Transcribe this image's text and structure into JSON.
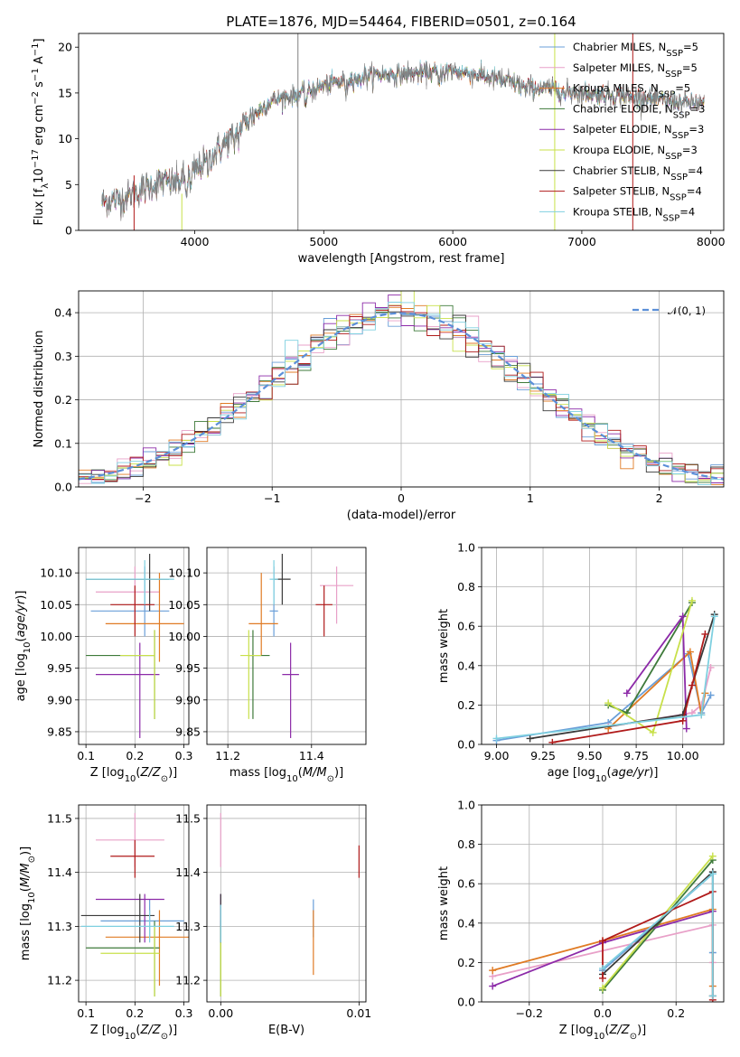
{
  "figure_title": "PLATE=1876, MJD=54464, FIBERID=0501, z=0.164",
  "colors": {
    "Chabrier MILES": "#6a9fd8",
    "Salpeter MILES": "#e8a0c8",
    "Kroupa MILES": "#e07b24",
    "Chabrier ELODIE": "#3e7a3a",
    "Salpeter ELODIE": "#8c2aa8",
    "Kroupa ELODIE": "#c8e04a",
    "Chabrier STELIB": "#3a3a3a",
    "Salpeter STELIB": "#b01a1a",
    "Kroupa STELIB": "#7fd0e0"
  },
  "chart_data": [
    {
      "id": "spectrum",
      "type": "line",
      "xlabel": "wavelength [Angstrom, rest frame]",
      "ylabel": "Flux [fλ10⁻¹⁷ erg cm⁻² s⁻¹ A⁻¹]",
      "xlim": [
        3100,
        8100
      ],
      "ylim": [
        0,
        21.5
      ],
      "xticks": [
        4000,
        5000,
        6000,
        7000,
        8000
      ],
      "yticks": [
        0,
        5,
        10,
        15,
        20
      ],
      "grid": false,
      "legend_position": "upper-right",
      "data_line": {
        "color": "#808080"
      },
      "spectrum_shape": {
        "x": [
          3250,
          3450,
          3600,
          3800,
          4000,
          4200,
          4400,
          4600,
          4800,
          5000,
          5200,
          5400,
          5600,
          5800,
          6000,
          6200,
          6400,
          6600,
          6800,
          7000,
          7200,
          7400,
          7600,
          7900
        ],
        "y": [
          3.0,
          3.5,
          4.5,
          5.8,
          6.5,
          9.0,
          12.0,
          14.2,
          14.8,
          15.8,
          16.5,
          17.0,
          17.0,
          17.2,
          17.4,
          17.0,
          16.3,
          15.6,
          15.4,
          15.0,
          14.8,
          14.6,
          14.2,
          13.8
        ]
      },
      "series": [
        {
          "name": "Chabrier MILES, N_SSP=5",
          "color": "#6a9fd8"
        },
        {
          "name": "Salpeter MILES, N_SSP=5",
          "color": "#e8a0c8"
        },
        {
          "name": "Kroupa MILES, N_SSP=5",
          "color": "#e07b24"
        },
        {
          "name": "Chabrier ELODIE, N_SSP=3",
          "color": "#3e7a3a"
        },
        {
          "name": "Salpeter ELODIE, N_SSP=3",
          "color": "#8c2aa8"
        },
        {
          "name": "Kroupa ELODIE, N_SSP=3",
          "color": "#c8e04a"
        },
        {
          "name": "Chabrier STELIB, N_SSP=4",
          "color": "#3a3a3a"
        },
        {
          "name": "Salpeter STELIB, N_SSP=4",
          "color": "#b01a1a"
        },
        {
          "name": "Kroupa STELIB, N_SSP=4",
          "color": "#7fd0e0"
        }
      ],
      "legend_html": [
        [
          "Chabrier MILES, N",
          "SSP",
          "=5"
        ],
        [
          "Salpeter MILES, N",
          "SSP",
          "=5"
        ],
        [
          "Kroupa MILES, N",
          "SSP",
          "=5"
        ],
        [
          "Chabrier ELODIE, N",
          "SSP",
          "=3"
        ],
        [
          "Salpeter ELODIE, N",
          "SSP",
          "=3"
        ],
        [
          "Kroupa ELODIE, N",
          "SSP",
          "=3"
        ],
        [
          "Chabrier STELIB, N",
          "SSP",
          "=4"
        ],
        [
          "Salpeter STELIB, N",
          "SSP",
          "=4"
        ],
        [
          "Kroupa STELIB, N",
          "SSP",
          "=4"
        ]
      ]
    },
    {
      "id": "residuals",
      "type": "line",
      "xlabel": "(data-model)/error",
      "ylabel": "Normed distribution",
      "xlim": [
        -2.5,
        2.5
      ],
      "ylim": [
        0,
        0.45
      ],
      "xticks": [
        -2,
        -1,
        0,
        1,
        2
      ],
      "yticks": [
        0.0,
        0.1,
        0.2,
        0.3,
        0.4
      ],
      "grid": true,
      "legend": "𝒩(0, 1)",
      "legend_position": "upper-right",
      "reference_curve": {
        "name": "N(0,1)",
        "color": "#5b8fd8",
        "style": "dashed"
      },
      "histogram_bin_width": 0.1,
      "histogram_shape": "stepped histograms of all nine models following the normal distribution"
    },
    {
      "id": "age_vs_Z",
      "type": "scatter",
      "xlabel": "Z [log10(Z/Z☉)]",
      "ylabel": "age  [log10(age/yr)]",
      "xlim": [
        0.085,
        0.31
      ],
      "ylim": [
        9.83,
        10.14
      ],
      "xticks": [
        0.1,
        0.2,
        0.3
      ],
      "yticks": [
        9.85,
        9.9,
        9.95,
        10.0,
        10.05,
        10.1
      ],
      "grid": true,
      "points": [
        {
          "model": "Chabrier MILES",
          "x": 0.22,
          "y": 10.04,
          "xerr": [
            0.11,
            0.27
          ],
          "yerr": [
            10.0,
            10.11
          ]
        },
        {
          "model": "Salpeter MILES",
          "x": 0.2,
          "y": 10.07,
          "xerr": [
            0.12,
            0.25
          ],
          "yerr": [
            10.02,
            10.11
          ]
        },
        {
          "model": "Kroupa MILES",
          "x": 0.25,
          "y": 10.02,
          "xerr": [
            0.14,
            0.3
          ],
          "yerr": [
            9.96,
            10.1
          ]
        },
        {
          "model": "Chabrier ELODIE",
          "x": 0.24,
          "y": 9.97,
          "xerr": [
            0.1,
            0.24
          ],
          "yerr": [
            9.87,
            10.01
          ]
        },
        {
          "model": "Salpeter ELODIE",
          "x": 0.21,
          "y": 9.94,
          "xerr": [
            0.12,
            0.25
          ],
          "yerr": [
            9.84,
            9.99
          ]
        },
        {
          "model": "Kroupa ELODIE",
          "x": 0.24,
          "y": 9.97,
          "xerr": [
            0.17,
            0.24
          ],
          "yerr": [
            9.87,
            10.01
          ]
        },
        {
          "model": "Chabrier STELIB",
          "x": 0.23,
          "y": 10.09,
          "xerr": [
            0.1,
            0.27
          ],
          "yerr": [
            10.04,
            10.13
          ]
        },
        {
          "model": "Salpeter STELIB",
          "x": 0.2,
          "y": 10.05,
          "xerr": [
            0.15,
            0.24
          ],
          "yerr": [
            10.0,
            10.08
          ]
        },
        {
          "model": "Kroupa STELIB",
          "x": 0.22,
          "y": 10.09,
          "xerr": [
            0.1,
            0.28
          ],
          "yerr": [
            10.05,
            10.12
          ]
        }
      ]
    },
    {
      "id": "age_vs_mass",
      "type": "scatter",
      "xlabel": "mass [log10(M/M☉)]",
      "ylabel": "",
      "xlim": [
        11.15,
        11.53
      ],
      "ylim": [
        9.83,
        10.14
      ],
      "xticks": [
        11.2,
        11.4
      ],
      "yticks": [
        9.85,
        9.9,
        9.95,
        10.0,
        10.05,
        10.1
      ],
      "grid": true,
      "points": [
        {
          "model": "Chabrier MILES",
          "x": 11.31,
          "y": 10.04,
          "xerr": [
            11.3,
            11.32
          ],
          "yerr": [
            10.0,
            10.11
          ]
        },
        {
          "model": "Salpeter MILES",
          "x": 11.46,
          "y": 10.08,
          "xerr": [
            11.42,
            11.5
          ],
          "yerr": [
            10.02,
            10.11
          ]
        },
        {
          "model": "Kroupa MILES",
          "x": 11.28,
          "y": 10.02,
          "xerr": [
            11.25,
            11.32
          ],
          "yerr": [
            9.97,
            10.1
          ]
        },
        {
          "model": "Chabrier ELODIE",
          "x": 11.26,
          "y": 9.97,
          "xerr": [
            11.25,
            11.3
          ],
          "yerr": [
            9.87,
            10.01
          ]
        },
        {
          "model": "Salpeter ELODIE",
          "x": 11.35,
          "y": 9.94,
          "xerr": [
            11.33,
            11.37
          ],
          "yerr": [
            9.84,
            9.99
          ]
        },
        {
          "model": "Kroupa ELODIE",
          "x": 11.25,
          "y": 9.97,
          "xerr": [
            11.23,
            11.28
          ],
          "yerr": [
            9.87,
            10.01
          ]
        },
        {
          "model": "Chabrier STELIB",
          "x": 11.33,
          "y": 10.09,
          "xerr": [
            11.31,
            11.35
          ],
          "yerr": [
            10.05,
            10.13
          ]
        },
        {
          "model": "Salpeter STELIB",
          "x": 11.43,
          "y": 10.05,
          "xerr": [
            11.41,
            11.45
          ],
          "yerr": [
            10.0,
            10.08
          ]
        },
        {
          "model": "Kroupa STELIB",
          "x": 11.31,
          "y": 10.09,
          "xerr": [
            11.3,
            11.32
          ],
          "yerr": [
            10.05,
            10.12
          ]
        }
      ]
    },
    {
      "id": "weight_vs_age",
      "type": "line",
      "xlabel": "age  [log10(age/yr)]",
      "ylabel": "mass weight",
      "xlim": [
        8.92,
        10.22
      ],
      "ylim": [
        0,
        1
      ],
      "xticks": [
        9.0,
        9.25,
        9.5,
        9.75,
        10.0
      ],
      "xticklabels": [
        "9.00",
        "9.25",
        "9.50",
        "9.75",
        "10.00"
      ],
      "yticks": [
        0.0,
        0.2,
        0.4,
        0.6,
        0.8,
        1.0
      ],
      "grid": true,
      "series": [
        {
          "model": "Chabrier MILES",
          "x": [
            9.0,
            9.6,
            10.03,
            10.1,
            10.15
          ],
          "y": [
            0.02,
            0.11,
            0.46,
            0.16,
            0.25
          ]
        },
        {
          "model": "Salpeter MILES",
          "x": [
            9.6,
            10.05,
            10.1,
            10.15
          ],
          "y": [
            0.09,
            0.16,
            0.2,
            0.39
          ]
        },
        {
          "model": "Kroupa MILES",
          "x": [
            9.6,
            10.04,
            10.1,
            10.12
          ],
          "y": [
            0.08,
            0.47,
            0.15,
            0.26
          ]
        },
        {
          "model": "Chabrier ELODIE",
          "x": [
            9.6,
            9.7,
            10.05
          ],
          "y": [
            0.2,
            0.16,
            0.72
          ]
        },
        {
          "model": "Salpeter ELODIE",
          "x": [
            9.7,
            10.0,
            10.02
          ],
          "y": [
            0.26,
            0.65,
            0.08
          ]
        },
        {
          "model": "Kroupa ELODIE",
          "x": [
            9.6,
            9.84,
            10.05
          ],
          "y": [
            0.21,
            0.06,
            0.73
          ]
        },
        {
          "model": "Chabrier STELIB",
          "x": [
            9.18,
            10.0,
            10.17
          ],
          "y": [
            0.03,
            0.15,
            0.66
          ]
        },
        {
          "model": "Salpeter STELIB",
          "x": [
            9.3,
            10.0,
            10.05,
            10.12
          ],
          "y": [
            0.01,
            0.12,
            0.3,
            0.56
          ]
        },
        {
          "model": "Kroupa STELIB",
          "x": [
            9.0,
            10.1,
            10.17
          ],
          "y": [
            0.03,
            0.15,
            0.65
          ]
        }
      ]
    },
    {
      "id": "mass_vs_Z",
      "type": "scatter",
      "xlabel": "Z [log10(Z/Z☉)]",
      "ylabel": "mass [log10(M/M☉)]",
      "xlim": [
        0.085,
        0.31
      ],
      "ylim": [
        11.16,
        11.525
      ],
      "xticks": [
        0.1,
        0.2,
        0.3
      ],
      "yticks": [
        11.2,
        11.3,
        11.4,
        11.5
      ],
      "grid": true,
      "points": [
        {
          "model": "Chabrier MILES",
          "x": 0.23,
          "y": 11.31,
          "xerr": [
            0.13,
            0.3
          ],
          "yerr": [
            11.28,
            11.35
          ]
        },
        {
          "model": "Salpeter MILES",
          "x": 0.2,
          "y": 11.46,
          "xerr": [
            0.12,
            0.26
          ],
          "yerr": [
            11.41,
            11.51
          ]
        },
        {
          "model": "Kroupa MILES",
          "x": 0.25,
          "y": 11.28,
          "xerr": [
            0.14,
            0.31
          ],
          "yerr": [
            11.19,
            11.33
          ]
        },
        {
          "model": "Chabrier ELODIE",
          "x": 0.24,
          "y": 11.26,
          "xerr": [
            0.1,
            0.25
          ],
          "yerr": [
            11.17,
            11.31
          ]
        },
        {
          "model": "Salpeter ELODIE",
          "x": 0.22,
          "y": 11.35,
          "xerr": [
            0.12,
            0.26
          ],
          "yerr": [
            11.27,
            11.36
          ]
        },
        {
          "model": "Kroupa ELODIE",
          "x": 0.24,
          "y": 11.25,
          "xerr": [
            0.13,
            0.25
          ],
          "yerr": [
            11.17,
            11.3
          ]
        },
        {
          "model": "Chabrier STELIB",
          "x": 0.21,
          "y": 11.32,
          "xerr": [
            0.09,
            0.24
          ],
          "yerr": [
            11.27,
            11.36
          ]
        },
        {
          "model": "Salpeter STELIB",
          "x": 0.2,
          "y": 11.43,
          "xerr": [
            0.15,
            0.24
          ],
          "yerr": [
            11.39,
            11.46
          ]
        },
        {
          "model": "Kroupa STELIB",
          "x": 0.23,
          "y": 11.3,
          "xerr": [
            0.09,
            0.28
          ],
          "yerr": [
            11.27,
            11.33
          ]
        }
      ]
    },
    {
      "id": "mass_vs_ebv",
      "type": "scatter",
      "xlabel": "E(B-V)",
      "ylabel": "",
      "xlim": [
        -0.001,
        0.0105
      ],
      "ylim": [
        11.16,
        11.525
      ],
      "xticks": [
        0.0,
        0.01
      ],
      "xticklabels": [
        "0.00",
        "0.01"
      ],
      "yticks": [
        11.2,
        11.3,
        11.4,
        11.5
      ],
      "grid": true,
      "points": [
        {
          "model": "Chabrier MILES",
          "x": 0.0067,
          "y": 11.31,
          "yerr": [
            11.28,
            11.35
          ]
        },
        {
          "model": "Salpeter MILES",
          "x": 0.0,
          "y": 11.46,
          "yerr": [
            11.41,
            11.51
          ]
        },
        {
          "model": "Kroupa MILES",
          "x": 0.0067,
          "y": 11.28,
          "yerr": [
            11.21,
            11.33
          ]
        },
        {
          "model": "Chabrier ELODIE",
          "x": 0.0,
          "y": 11.26,
          "yerr": [
            11.17,
            11.31
          ]
        },
        {
          "model": "Salpeter ELODIE",
          "x": 0.0,
          "y": 11.35,
          "yerr": [
            11.27,
            11.36
          ]
        },
        {
          "model": "Kroupa ELODIE",
          "x": 0.0,
          "y": 11.25,
          "yerr": [
            11.17,
            11.3
          ]
        },
        {
          "model": "Chabrier STELIB",
          "x": 0.0,
          "y": 11.32,
          "yerr": [
            11.27,
            11.36
          ]
        },
        {
          "model": "Salpeter STELIB",
          "x": 0.01,
          "y": 11.43,
          "yerr": [
            11.39,
            11.45
          ]
        },
        {
          "model": "Kroupa STELIB",
          "x": 0.0,
          "y": 11.3,
          "yerr": [
            11.27,
            11.34
          ]
        }
      ]
    },
    {
      "id": "weight_vs_Z",
      "type": "line",
      "xlabel": "Z [log10(Z/Z☉)]",
      "ylabel": "mass weight",
      "xlim": [
        -0.33,
        0.33
      ],
      "ylim": [
        0,
        1
      ],
      "xticks": [
        -0.2,
        0.0,
        0.2
      ],
      "xticklabels": [
        "−0.2",
        "0.0",
        "0.2"
      ],
      "yticks": [
        0.0,
        0.2,
        0.4,
        0.6,
        0.8,
        1.0
      ],
      "grid": true,
      "series": [
        {
          "model": "Chabrier MILES",
          "x": [
            0.0,
            0.3,
            0.3
          ],
          "y": [
            0.16,
            0.65,
            0.25
          ]
        },
        {
          "model": "Salpeter MILES",
          "x": [
            -0.3,
            0.3,
            0.3
          ],
          "y": [
            0.13,
            0.39,
            0.2
          ]
        },
        {
          "model": "Kroupa MILES",
          "x": [
            -0.3,
            0.0,
            0.3,
            0.3
          ],
          "y": [
            0.16,
            0.31,
            0.47,
            0.08
          ]
        },
        {
          "model": "Chabrier ELODIE",
          "x": [
            0.0,
            0.3
          ],
          "y": [
            0.06,
            0.72
          ]
        },
        {
          "model": "Salpeter ELODIE",
          "x": [
            -0.3,
            0.0,
            0.3
          ],
          "y": [
            0.08,
            0.3,
            0.46
          ]
        },
        {
          "model": "Kroupa ELODIE",
          "x": [
            0.0,
            0.3
          ],
          "y": [
            0.07,
            0.74
          ]
        },
        {
          "model": "Chabrier STELIB",
          "x": [
            0.0,
            0.3,
            0.3
          ],
          "y": [
            0.14,
            0.66,
            0.03
          ]
        },
        {
          "model": "Salpeter STELIB",
          "x": [
            0.0,
            0.0,
            0.3,
            0.3
          ],
          "y": [
            0.12,
            0.31,
            0.56,
            0.01
          ]
        },
        {
          "model": "Kroupa STELIB",
          "x": [
            0.0,
            0.3,
            0.3
          ],
          "y": [
            0.17,
            0.65,
            0.03
          ]
        }
      ]
    }
  ]
}
